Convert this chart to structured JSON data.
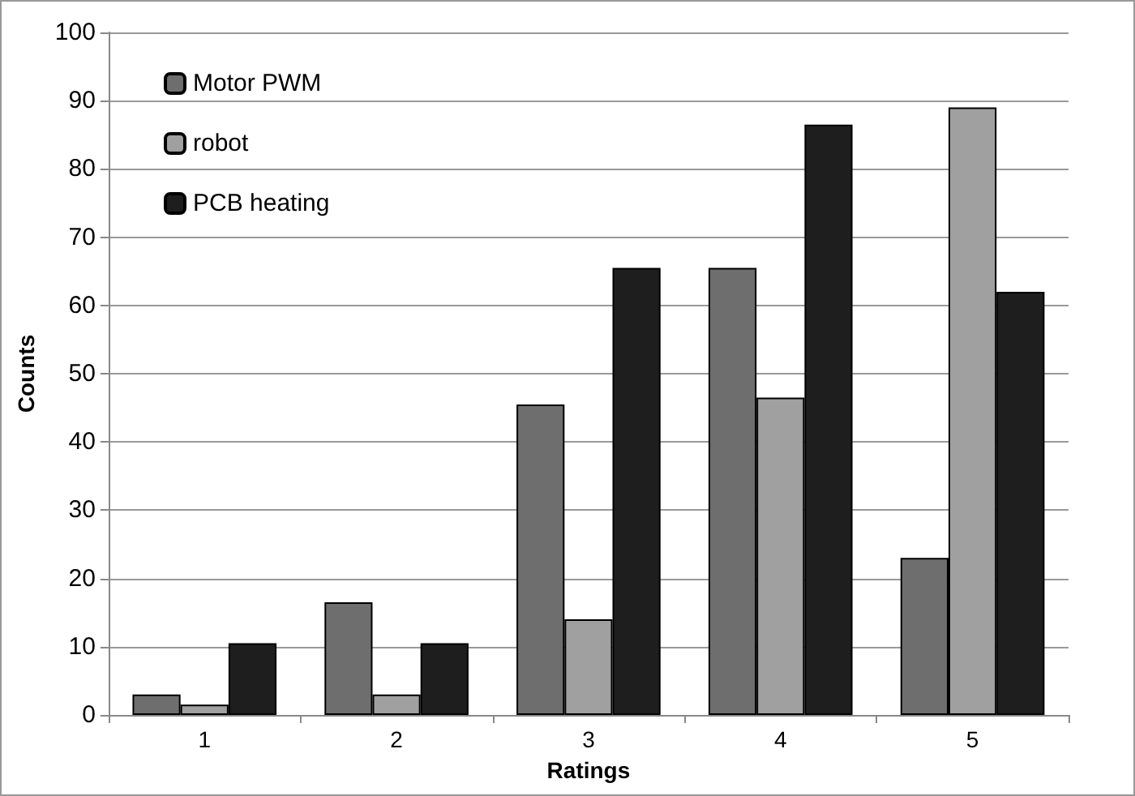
{
  "chart_data": {
    "type": "bar",
    "xlabel": "Ratings",
    "ylabel": "Counts",
    "categories": [
      "1",
      "2",
      "3",
      "4",
      "5"
    ],
    "series": [
      {
        "name": "Motor PWM",
        "color": "#6e6e6e",
        "values": [
          3,
          16.5,
          45.5,
          65.5,
          23
        ]
      },
      {
        "name": "robot",
        "color": "#a0a0a0",
        "values": [
          1.5,
          3,
          14,
          46.5,
          89
        ]
      },
      {
        "name": "PCB heating",
        "color": "#1e1e1e",
        "values": [
          10.5,
          10.5,
          65.5,
          86.5,
          62
        ]
      }
    ],
    "ylim": [
      0,
      100
    ],
    "yticks": [
      0,
      10,
      20,
      30,
      40,
      50,
      60,
      70,
      80,
      90,
      100
    ],
    "grid": "y",
    "legend": "top left"
  }
}
